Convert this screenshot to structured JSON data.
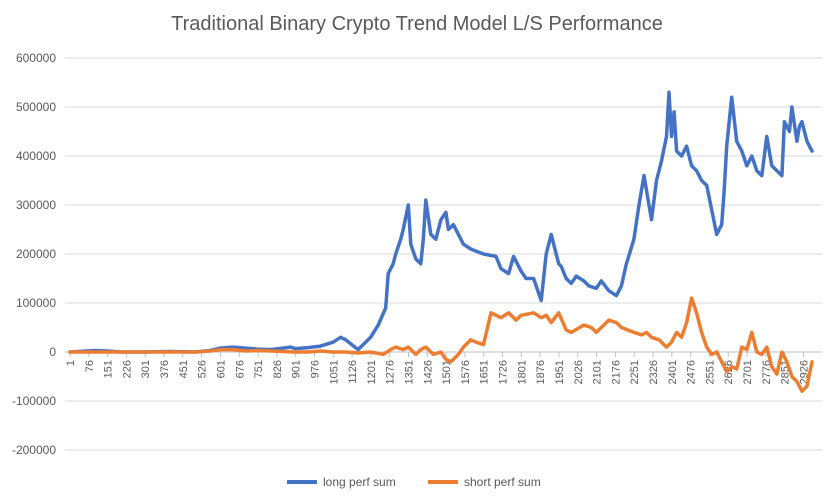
{
  "chart_data": {
    "type": "line",
    "title": "Traditional Binary Crypto Trend Model L/S Performance",
    "xlabel": "",
    "ylabel": "",
    "ylim": [
      -200000,
      600000
    ],
    "y_ticks": [
      600000,
      500000,
      400000,
      300000,
      200000,
      100000,
      0,
      -100000,
      -200000
    ],
    "y_tick_labels": [
      "600000",
      "500000",
      "400000",
      "300000",
      "200000",
      "100000",
      "0",
      "-100000",
      "-200000"
    ],
    "x_tick_labels": [
      "1",
      "76",
      "151",
      "226",
      "301",
      "376",
      "451",
      "526",
      "601",
      "676",
      "751",
      "826",
      "901",
      "976",
      "1051",
      "1126",
      "1201",
      "1276",
      "1351",
      "1426",
      "1501",
      "1576",
      "1651",
      "1726",
      "1801",
      "1876",
      "1951",
      "2026",
      "2101",
      "2176",
      "2251",
      "2326",
      "2401",
      "2476",
      "2551",
      "2626",
      "2701",
      "2776",
      "2851",
      "2926"
    ],
    "x_tick_positions": [
      1,
      76,
      151,
      226,
      301,
      376,
      451,
      526,
      601,
      676,
      751,
      826,
      901,
      976,
      1051,
      1126,
      1201,
      1276,
      1351,
      1426,
      1501,
      1576,
      1651,
      1726,
      1801,
      1876,
      1951,
      2026,
      2101,
      2176,
      2251,
      2326,
      2401,
      2476,
      2551,
      2626,
      2701,
      2776,
      2851,
      2926
    ],
    "xlim": [
      1,
      3000
    ],
    "grid": true,
    "legend_position": "bottom",
    "series": [
      {
        "name": "long perf sum",
        "color": "#4472C4",
        "x": [
          1,
          100,
          150,
          200,
          300,
          400,
          500,
          560,
          600,
          650,
          700,
          750,
          800,
          850,
          880,
          900,
          950,
          1000,
          1050,
          1080,
          1100,
          1150,
          1200,
          1230,
          1260,
          1270,
          1290,
          1300,
          1320,
          1330,
          1350,
          1360,
          1380,
          1400,
          1410,
          1420,
          1440,
          1460,
          1480,
          1500,
          1510,
          1530,
          1550,
          1570,
          1600,
          1650,
          1700,
          1720,
          1750,
          1770,
          1800,
          1820,
          1850,
          1880,
          1900,
          1920,
          1950,
          1960,
          1980,
          2000,
          2020,
          2050,
          2070,
          2100,
          2120,
          2150,
          2180,
          2200,
          2220,
          2250,
          2270,
          2290,
          2310,
          2320,
          2340,
          2360,
          2380,
          2390,
          2400,
          2410,
          2420,
          2440,
          2460,
          2480,
          2500,
          2520,
          2540,
          2560,
          2580,
          2600,
          2610,
          2620,
          2640,
          2660,
          2680,
          2700,
          2720,
          2740,
          2760,
          2780,
          2800,
          2820,
          2840,
          2850,
          2870,
          2880,
          2900,
          2910,
          2920,
          2940,
          2960
        ],
        "y": [
          0,
          3000,
          2000,
          0,
          0,
          1000,
          0,
          3000,
          8000,
          10000,
          8000,
          6000,
          5000,
          8000,
          10000,
          7000,
          9000,
          12000,
          20000,
          30000,
          25000,
          5000,
          30000,
          55000,
          90000,
          160000,
          180000,
          200000,
          230000,
          250000,
          300000,
          220000,
          190000,
          180000,
          230000,
          310000,
          240000,
          230000,
          270000,
          285000,
          250000,
          260000,
          240000,
          220000,
          210000,
          200000,
          195000,
          170000,
          160000,
          195000,
          165000,
          150000,
          150000,
          105000,
          200000,
          240000,
          180000,
          175000,
          150000,
          140000,
          155000,
          145000,
          135000,
          130000,
          145000,
          125000,
          115000,
          135000,
          180000,
          230000,
          300000,
          360000,
          300000,
          270000,
          350000,
          390000,
          440000,
          530000,
          440000,
          490000,
          410000,
          400000,
          420000,
          380000,
          370000,
          350000,
          340000,
          290000,
          240000,
          260000,
          330000,
          420000,
          520000,
          430000,
          410000,
          380000,
          400000,
          370000,
          360000,
          440000,
          380000,
          370000,
          360000,
          470000,
          450000,
          500000,
          430000,
          460000,
          470000,
          430000,
          410000
        ]
      },
      {
        "name": "short perf sum",
        "color": "#ED7D31",
        "x": [
          1,
          100,
          200,
          300,
          400,
          500,
          560,
          600,
          650,
          700,
          750,
          800,
          850,
          900,
          950,
          1000,
          1050,
          1100,
          1150,
          1200,
          1250,
          1280,
          1300,
          1330,
          1350,
          1380,
          1400,
          1420,
          1450,
          1480,
          1500,
          1520,
          1550,
          1570,
          1600,
          1620,
          1650,
          1680,
          1700,
          1720,
          1750,
          1780,
          1800,
          1850,
          1880,
          1900,
          1920,
          1950,
          1980,
          2000,
          2050,
          2080,
          2100,
          2150,
          2180,
          2200,
          2250,
          2280,
          2300,
          2320,
          2350,
          2380,
          2400,
          2420,
          2440,
          2460,
          2480,
          2500,
          2520,
          2540,
          2560,
          2580,
          2600,
          2620,
          2640,
          2660,
          2680,
          2700,
          2720,
          2740,
          2760,
          2780,
          2800,
          2820,
          2840,
          2860,
          2880,
          2900,
          2920,
          2940,
          2960
        ],
        "y": [
          0,
          0,
          0,
          0,
          0,
          0,
          2000,
          5000,
          5000,
          2000,
          3000,
          2000,
          1000,
          0,
          0,
          2000,
          0,
          0,
          -2000,
          0,
          -5000,
          5000,
          10000,
          5000,
          10000,
          -5000,
          5000,
          10000,
          -5000,
          0,
          -15000,
          -20000,
          -5000,
          10000,
          25000,
          20000,
          15000,
          80000,
          75000,
          70000,
          80000,
          65000,
          75000,
          80000,
          70000,
          75000,
          60000,
          80000,
          45000,
          40000,
          55000,
          50000,
          40000,
          65000,
          60000,
          50000,
          40000,
          35000,
          40000,
          30000,
          25000,
          10000,
          20000,
          40000,
          30000,
          60000,
          110000,
          80000,
          40000,
          10000,
          -5000,
          0,
          -20000,
          -40000,
          -30000,
          -35000,
          10000,
          5000,
          40000,
          0,
          -5000,
          10000,
          -30000,
          -45000,
          0,
          -20000,
          -50000,
          -60000,
          -80000,
          -70000,
          -20000
        ]
      }
    ]
  }
}
